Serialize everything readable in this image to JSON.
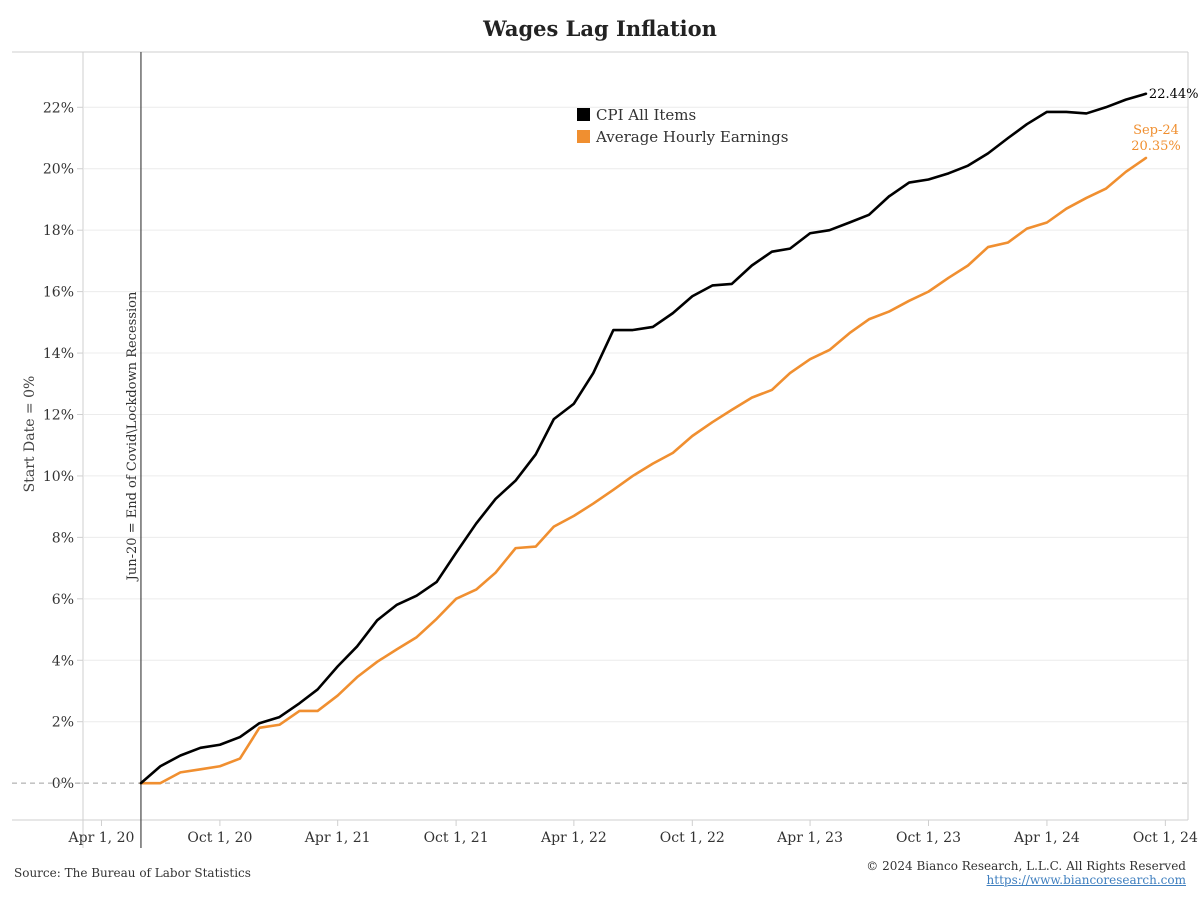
{
  "chart_data": {
    "type": "line",
    "title": "Wages Lag Inflation",
    "xlabel": "",
    "ylabel": "Start Date = 0%",
    "ylim": [
      -1.2,
      23.8
    ],
    "yticks": [
      0,
      2,
      4,
      6,
      8,
      10,
      12,
      14,
      16,
      18,
      20,
      22
    ],
    "ytick_labels": [
      "0%",
      "2%",
      "4%",
      "6%",
      "8%",
      "10%",
      "12%",
      "14%",
      "16%",
      "18%",
      "20%",
      "22%"
    ],
    "xlim": [
      "2020-03-05",
      "2024-11-05"
    ],
    "xticks": [
      "2020-04-01",
      "2020-10-01",
      "2021-04-01",
      "2021-10-01",
      "2022-04-01",
      "2022-10-01",
      "2023-04-01",
      "2023-10-01",
      "2024-04-01",
      "2024-10-01"
    ],
    "xtick_labels": [
      "Apr 1, 20",
      "Oct 1, 20",
      "Apr 1, 21",
      "Oct 1, 21",
      "Apr 1, 22",
      "Oct 1, 22",
      "Apr 1, 23",
      "Oct 1, 23",
      "Apr 1, 24",
      "Oct 1, 24"
    ],
    "grid": "horizontal",
    "legend_position": "top-center",
    "x": [
      "2020-06-01",
      "2020-07-01",
      "2020-08-01",
      "2020-09-01",
      "2020-10-01",
      "2020-11-01",
      "2020-12-01",
      "2021-01-01",
      "2021-02-01",
      "2021-03-01",
      "2021-04-01",
      "2021-05-01",
      "2021-06-01",
      "2021-07-01",
      "2021-08-01",
      "2021-09-01",
      "2021-10-01",
      "2021-11-01",
      "2021-12-01",
      "2022-01-01",
      "2022-02-01",
      "2022-03-01",
      "2022-04-01",
      "2022-05-01",
      "2022-06-01",
      "2022-07-01",
      "2022-08-01",
      "2022-09-01",
      "2022-10-01",
      "2022-11-01",
      "2022-12-01",
      "2023-01-01",
      "2023-02-01",
      "2023-03-01",
      "2023-04-01",
      "2023-05-01",
      "2023-06-01",
      "2023-07-01",
      "2023-08-01",
      "2023-09-01",
      "2023-10-01",
      "2023-11-01",
      "2023-12-01",
      "2024-01-01",
      "2024-02-01",
      "2024-03-01",
      "2024-04-01",
      "2024-05-01",
      "2024-06-01",
      "2024-07-01",
      "2024-08-01",
      "2024-09-01"
    ],
    "series": [
      {
        "name": "CPI All Items",
        "color": "#000000",
        "values": [
          0,
          0.55,
          0.9,
          1.15,
          1.25,
          1.5,
          1.95,
          2.15,
          2.6,
          3.05,
          3.8,
          4.45,
          5.3,
          5.8,
          6.1,
          6.55,
          7.5,
          8.45,
          9.25,
          9.85,
          10.7,
          11.85,
          12.35,
          13.35,
          14.75,
          14.75,
          14.85,
          15.3,
          15.85,
          16.2,
          16.25,
          16.85,
          17.3,
          17.4,
          17.9,
          18.0,
          18.25,
          18.5,
          19.1,
          19.55,
          19.65,
          19.85,
          20.1,
          20.5,
          21.0,
          21.45,
          21.85,
          21.85,
          21.8,
          22.0,
          22.25,
          22.44
        ]
      },
      {
        "name": "Average Hourly Earnings",
        "color": "#f08f30",
        "values": [
          0,
          0,
          0.35,
          0.45,
          0.55,
          0.8,
          1.8,
          1.9,
          2.35,
          2.35,
          2.85,
          3.45,
          3.95,
          4.35,
          4.75,
          5.35,
          6.0,
          6.3,
          6.85,
          7.65,
          7.7,
          8.35,
          8.7,
          9.1,
          9.55,
          10.0,
          10.4,
          10.75,
          11.3,
          11.75,
          12.15,
          12.55,
          12.8,
          13.35,
          13.8,
          14.1,
          14.65,
          15.1,
          15.35,
          15.7,
          16.0,
          16.45,
          16.85,
          17.45,
          17.6,
          18.05,
          18.25,
          18.7,
          19.05,
          19.35,
          19.9,
          20.35
        ]
      }
    ],
    "annotations": {
      "vline_date": "2020-06-01",
      "vline_label": "Jun-20 = End of Covid\\Lockdown Recession",
      "cpi_end_label": "22.44%",
      "ahe_end_label_line1": "Sep-24",
      "ahe_end_label_line2": "20.35%"
    }
  },
  "footer": {
    "source": "Source: The Bureau of Labor Statistics",
    "copyright": "© 2024 Bianco Research, L.L.C. All Rights Reserved",
    "url": "https://www.biancoresearch.com"
  },
  "colors": {
    "cpi": "#000000",
    "ahe": "#f08f30",
    "grid": "#ececec",
    "axis": "#cfcfcf",
    "zero_line": "#a0a0a0",
    "vline": "#555555"
  }
}
